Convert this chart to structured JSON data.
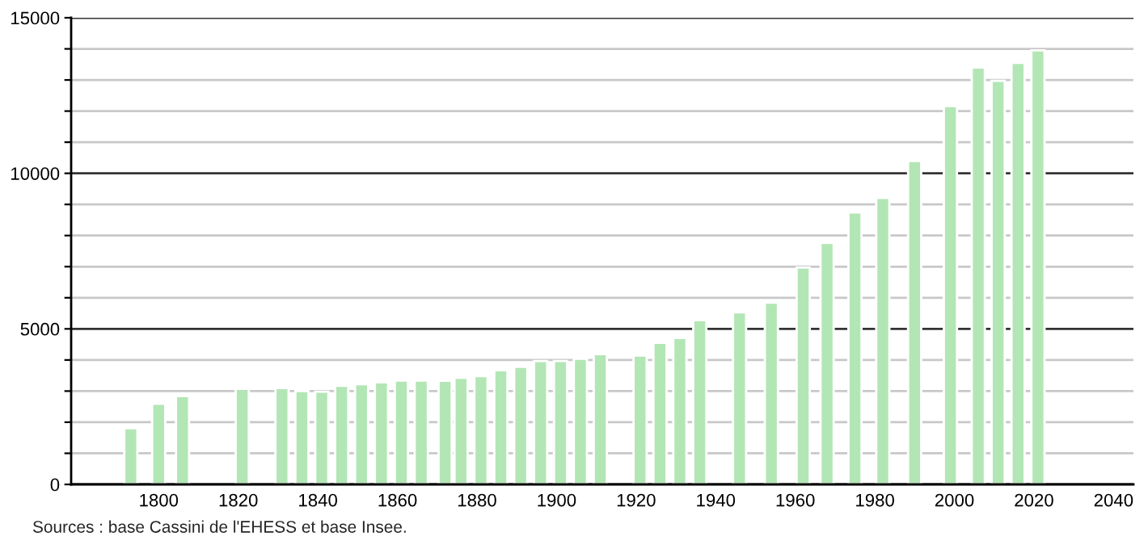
{
  "chart_data": {
    "type": "bar",
    "x": [
      1793,
      1800,
      1806,
      1821,
      1831,
      1836,
      1841,
      1846,
      1851,
      1856,
      1861,
      1866,
      1872,
      1876,
      1881,
      1886,
      1891,
      1896,
      1901,
      1906,
      1911,
      1921,
      1926,
      1931,
      1936,
      1946,
      1954,
      1962,
      1968,
      1975,
      1982,
      1990,
      1999,
      2006,
      2011,
      2016,
      2021
    ],
    "series": [
      {
        "color": "#b3e6b5",
        "values": [
          1810,
          2590,
          2840,
          3070,
          3100,
          3000,
          2980,
          3170,
          3220,
          3280,
          3340,
          3340,
          3330,
          3430,
          3480,
          3670,
          3780,
          3970,
          3970,
          4040,
          4190,
          4140,
          4550,
          4710,
          5280,
          5530,
          5840,
          6970,
          7760,
          8740,
          9210,
          10400,
          12160,
          13400,
          12970,
          13550,
          13950
        ]
      }
    ],
    "xlim": [
      1778,
      2045
    ],
    "xticks": [
      1800,
      1820,
      1840,
      1860,
      1880,
      1900,
      1920,
      1940,
      1960,
      1980,
      2000,
      2020,
      2040
    ],
    "ylim": [
      0,
      15000
    ],
    "yticks": [
      0,
      {
        "value": 1000,
        "label": null
      },
      {
        "value": 2000,
        "label": null
      },
      {
        "value": 3000,
        "label": null
      },
      {
        "value": 4000,
        "label": null
      },
      5000,
      {
        "value": 6000,
        "label": null
      },
      {
        "value": 7000,
        "label": null
      },
      {
        "value": 8000,
        "label": null
      },
      {
        "value": 9000,
        "label": null
      },
      10000,
      {
        "value": 11000,
        "label": null
      },
      {
        "value": 12000,
        "label": null
      },
      {
        "value": 13000,
        "label": null
      },
      {
        "value": 14000,
        "label": null
      },
      15000
    ],
    "grid": "y",
    "annotations": [
      "Sources : base Cassini de l'EHESS et base Insee."
    ]
  }
}
